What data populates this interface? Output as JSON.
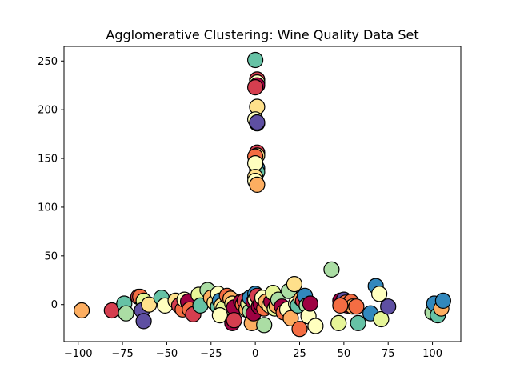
{
  "chart_data": {
    "type": "scatter",
    "title": "Agglomerative Clustering: Wine Quality Data Set",
    "xlabel": "",
    "ylabel": "",
    "xlim": [
      -108,
      116
    ],
    "ylim": [
      -38,
      265
    ],
    "xticks": [
      -100,
      -75,
      -50,
      -25,
      0,
      25,
      50,
      75,
      100
    ],
    "yticks": [
      0,
      50,
      100,
      150,
      200,
      250
    ],
    "grid": false,
    "marker_edge_color": "#000000",
    "palette": [
      "#9e0142",
      "#d53e4f",
      "#f46d43",
      "#fdae61",
      "#fee08b",
      "#ffffbf",
      "#e6f598",
      "#abdda4",
      "#66c2a5",
      "#3288bd",
      "#5e4fa2"
    ],
    "points": [
      [
        -98,
        -6,
        3
      ],
      [
        -81,
        -6,
        1
      ],
      [
        -74,
        1,
        8
      ],
      [
        -73,
        -9,
        7
      ],
      [
        -66,
        8,
        1
      ],
      [
        -65,
        8,
        2
      ],
      [
        -63,
        4,
        6
      ],
      [
        -64,
        -6,
        10
      ],
      [
        -63,
        -17,
        10
      ],
      [
        -60,
        0,
        4
      ],
      [
        -53,
        7,
        8
      ],
      [
        -51,
        -1,
        5
      ],
      [
        -45,
        4,
        4
      ],
      [
        -43,
        -1,
        1
      ],
      [
        -41,
        -5,
        2
      ],
      [
        -40,
        5,
        5
      ],
      [
        -38,
        3,
        0
      ],
      [
        -37,
        -5,
        2
      ],
      [
        -35,
        -10,
        1
      ],
      [
        -32,
        10,
        6
      ],
      [
        -31,
        -1,
        8
      ],
      [
        -27,
        15,
        7
      ],
      [
        -25,
        7,
        3
      ],
      [
        -23,
        2,
        4
      ],
      [
        -21,
        11,
        5
      ],
      [
        -21,
        -2,
        8
      ],
      [
        -20,
        4,
        9
      ],
      [
        -19,
        -1,
        4
      ],
      [
        -18,
        -4,
        6
      ],
      [
        -20,
        -11,
        5
      ],
      [
        -16,
        9,
        2
      ],
      [
        -14,
        6,
        3
      ],
      [
        -13,
        1,
        4
      ],
      [
        -12,
        -3,
        0
      ],
      [
        -13,
        -19,
        0
      ],
      [
        -12,
        -16,
        1
      ],
      [
        -8,
        3,
        0
      ],
      [
        -7,
        0,
        2
      ],
      [
        -6,
        4,
        1
      ],
      [
        -5,
        -5,
        3
      ],
      [
        -4,
        1,
        6
      ],
      [
        -3,
        -7,
        7
      ],
      [
        -3,
        7,
        9
      ],
      [
        -2,
        -19,
        3
      ],
      [
        -1,
        3,
        0
      ],
      [
        -1,
        -9,
        0
      ],
      [
        0,
        11,
        9
      ],
      [
        0,
        5,
        5
      ],
      [
        1,
        9,
        1
      ],
      [
        2,
        -2,
        0
      ],
      [
        3,
        1,
        0
      ],
      [
        4,
        7,
        5
      ],
      [
        5,
        -4,
        2
      ],
      [
        5,
        -21,
        7
      ],
      [
        6,
        3,
        3
      ],
      [
        8,
        -1,
        4
      ],
      [
        9,
        3,
        0
      ],
      [
        10,
        12,
        6
      ],
      [
        11,
        -4,
        6
      ],
      [
        12,
        -1,
        3
      ],
      [
        13,
        5,
        7
      ],
      [
        15,
        -2,
        0
      ],
      [
        16,
        -8,
        2
      ],
      [
        18,
        -5,
        5
      ],
      [
        19,
        14,
        7
      ],
      [
        20,
        -14,
        3
      ],
      [
        22,
        21,
        4
      ],
      [
        23,
        1,
        5
      ],
      [
        24,
        -1,
        8
      ],
      [
        25,
        -25,
        2
      ],
      [
        26,
        6,
        3
      ],
      [
        27,
        4,
        1
      ],
      [
        28,
        9,
        9
      ],
      [
        29,
        -1,
        7
      ],
      [
        30,
        -12,
        5
      ],
      [
        31,
        1,
        0
      ],
      [
        34,
        -22,
        5
      ],
      [
        43,
        36,
        7
      ],
      [
        47,
        -19,
        6
      ],
      [
        48,
        4,
        0
      ],
      [
        49,
        1,
        1
      ],
      [
        50,
        5,
        10
      ],
      [
        51,
        2,
        2
      ],
      [
        52,
        -1,
        0
      ],
      [
        54,
        3,
        2
      ],
      [
        55,
        -2,
        3
      ],
      [
        48,
        -1,
        2
      ],
      [
        57,
        -2,
        2
      ],
      [
        58,
        -19,
        8
      ],
      [
        65,
        -9,
        9
      ],
      [
        68,
        19,
        9
      ],
      [
        70,
        11,
        5
      ],
      [
        71,
        -15,
        6
      ],
      [
        75,
        -2,
        10
      ],
      [
        100,
        -8,
        7
      ],
      [
        101,
        1,
        9
      ],
      [
        103,
        -11,
        8
      ],
      [
        105,
        -4,
        3
      ],
      [
        106,
        4,
        9
      ],
      [
        0,
        251,
        8
      ],
      [
        1,
        231,
        1
      ],
      [
        1,
        228,
        5
      ],
      [
        1,
        225,
        0
      ],
      [
        0,
        223,
        1
      ],
      [
        1,
        203,
        4
      ],
      [
        0,
        190,
        5
      ],
      [
        1,
        186,
        8
      ],
      [
        1,
        187,
        10
      ],
      [
        1,
        156,
        1
      ],
      [
        1,
        153,
        4
      ],
      [
        0,
        152,
        2
      ],
      [
        1,
        140,
        9
      ],
      [
        1,
        136,
        8
      ],
      [
        0,
        145,
        5
      ],
      [
        0,
        131,
        4
      ],
      [
        0,
        127,
        5
      ],
      [
        1,
        123,
        3
      ]
    ]
  }
}
